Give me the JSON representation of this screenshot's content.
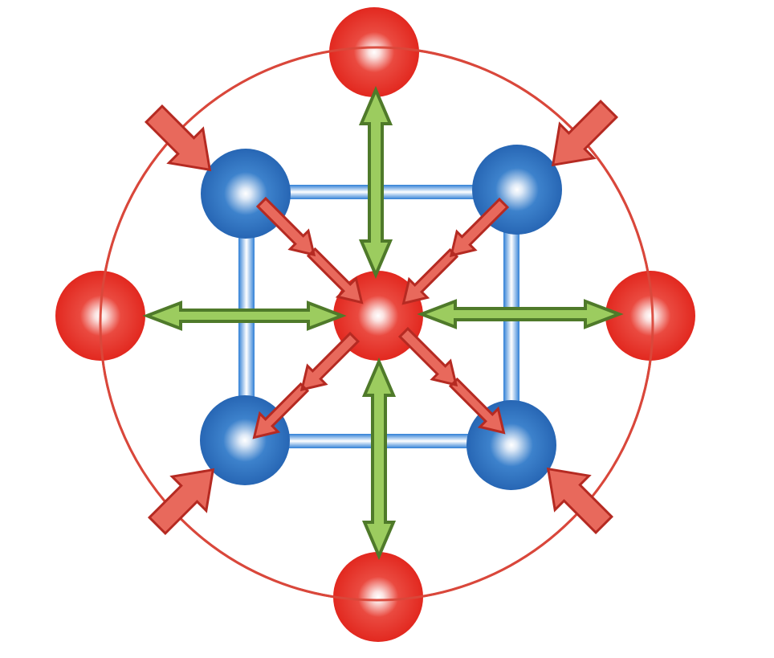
{
  "diagram": {
    "colors": {
      "outer_circle": "#d9483b",
      "red_atom": "#e5322b",
      "blue_atom": "#2b72bf",
      "bond": "#3a8ee0",
      "green_arrow_fill": "#9ccc5f",
      "green_arrow_stroke": "#4f7a2a",
      "red_arrow_fill": "#e8695c",
      "red_arrow_stroke": "#b52a22"
    },
    "atoms": [
      {
        "id": "center",
        "color": "red"
      },
      {
        "id": "top",
        "color": "red"
      },
      {
        "id": "bottom",
        "color": "red"
      },
      {
        "id": "left",
        "color": "red"
      },
      {
        "id": "right",
        "color": "red"
      },
      {
        "id": "top-left",
        "color": "blue"
      },
      {
        "id": "top-right",
        "color": "blue"
      },
      {
        "id": "bottom-left",
        "color": "blue"
      },
      {
        "id": "bottom-right",
        "color": "blue"
      }
    ],
    "green_arrows": [
      "up",
      "down",
      "left",
      "right"
    ],
    "inner_red_arrows": [
      "top-left",
      "top-right",
      "bottom-left",
      "bottom-right"
    ],
    "outer_red_arrows": [
      "top-left",
      "top-right",
      "bottom-left",
      "bottom-right"
    ]
  }
}
